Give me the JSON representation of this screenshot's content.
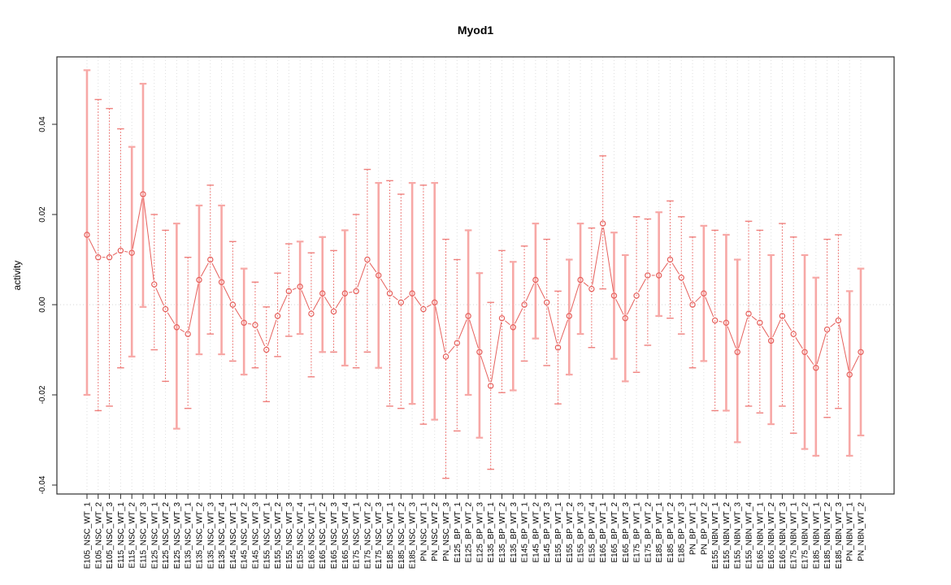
{
  "title": "Myod1",
  "colors": {
    "point": "#e6605c",
    "line": "#e6605c",
    "bar_dotted": "#ed5f5c",
    "bar_pale": "#f7a8a6",
    "cap_dotted": "#ef807d",
    "cap_pale": "#f7a8a6",
    "gridline": "#dedede",
    "zero_line": "#d4d4d4",
    "frame": "#2e2e2e",
    "tick": "#2e2e2e",
    "text": "#000000"
  },
  "chart_data": {
    "type": "scatter",
    "title": "Myod1",
    "xlabel": "",
    "ylabel": "activity",
    "ylim": [
      -0.0425,
      0.0545
    ],
    "grid": "vertical-dotted-per-category",
    "legend": "none",
    "zero_line": true,
    "yticks": [
      {
        "value": -0.04,
        "label": "-0.04"
      },
      {
        "value": -0.02,
        "label": "-0.02"
      },
      {
        "value": 0.0,
        "label": "0.00"
      },
      {
        "value": 0.02,
        "label": "0.02"
      },
      {
        "value": 0.04,
        "label": "0.04"
      }
    ],
    "points": [
      {
        "label": "E105_NSC_WT_1",
        "value": 0.0155,
        "lo": -0.02,
        "hi": 0.052,
        "style": "pale"
      },
      {
        "label": "E105_NSC_WT_2",
        "value": 0.0105,
        "lo": -0.0235,
        "hi": 0.0455,
        "style": "dotted"
      },
      {
        "label": "E105_NSC_WT_3",
        "value": 0.0105,
        "lo": -0.0225,
        "hi": 0.0435,
        "style": "dotted"
      },
      {
        "label": "E115_NSC_WT_1",
        "value": 0.012,
        "lo": -0.014,
        "hi": 0.039,
        "style": "dotted"
      },
      {
        "label": "E115_NSC_WT_2",
        "value": 0.0115,
        "lo": -0.0115,
        "hi": 0.035,
        "style": "pale"
      },
      {
        "label": "E115_NSC_WT_3",
        "value": 0.0245,
        "lo": -0.0005,
        "hi": 0.049,
        "style": "pale"
      },
      {
        "label": "E125_NSC_WT_1",
        "value": 0.0045,
        "lo": -0.01,
        "hi": 0.02,
        "style": "dotted"
      },
      {
        "label": "E125_NSC_WT_2",
        "value": -0.001,
        "lo": -0.017,
        "hi": 0.0165,
        "style": "dotted"
      },
      {
        "label": "E125_NSC_WT_3",
        "value": -0.005,
        "lo": -0.0275,
        "hi": 0.018,
        "style": "pale"
      },
      {
        "label": "E135_NSC_WT_1",
        "value": -0.0065,
        "lo": -0.023,
        "hi": 0.0105,
        "style": "dotted"
      },
      {
        "label": "E135_NSC_WT_2",
        "value": 0.0055,
        "lo": -0.011,
        "hi": 0.022,
        "style": "pale"
      },
      {
        "label": "E135_NSC_WT_3",
        "value": 0.01,
        "lo": -0.0065,
        "hi": 0.0265,
        "style": "dotted"
      },
      {
        "label": "E135_NSC_WT_4",
        "value": 0.005,
        "lo": -0.011,
        "hi": 0.022,
        "style": "pale"
      },
      {
        "label": "E145_NSC_WT_1",
        "value": 0.0,
        "lo": -0.0125,
        "hi": 0.014,
        "style": "dotted"
      },
      {
        "label": "E145_NSC_WT_2",
        "value": -0.004,
        "lo": -0.0155,
        "hi": 0.008,
        "style": "pale"
      },
      {
        "label": "E145_NSC_WT_3",
        "value": -0.0045,
        "lo": -0.014,
        "hi": 0.005,
        "style": "dotted"
      },
      {
        "label": "E155_NSC_WT_1",
        "value": -0.01,
        "lo": -0.0215,
        "hi": -0.0005,
        "style": "dotted"
      },
      {
        "label": "E155_NSC_WT_2",
        "value": -0.0025,
        "lo": -0.0115,
        "hi": 0.007,
        "style": "dotted"
      },
      {
        "label": "E155_NSC_WT_3",
        "value": 0.003,
        "lo": -0.007,
        "hi": 0.0135,
        "style": "dotted"
      },
      {
        "label": "E155_NSC_WT_4",
        "value": 0.004,
        "lo": -0.0065,
        "hi": 0.014,
        "style": "pale"
      },
      {
        "label": "E165_NSC_WT_1",
        "value": -0.002,
        "lo": -0.016,
        "hi": 0.0115,
        "style": "dotted"
      },
      {
        "label": "E165_NSC_WT_2",
        "value": 0.0025,
        "lo": -0.0105,
        "hi": 0.015,
        "style": "pale"
      },
      {
        "label": "E165_NSC_WT_3",
        "value": -0.0015,
        "lo": -0.0105,
        "hi": 0.012,
        "style": "dotted"
      },
      {
        "label": "E165_NSC_WT_4",
        "value": 0.0025,
        "lo": -0.0135,
        "hi": 0.0165,
        "style": "pale"
      },
      {
        "label": "E175_NSC_WT_1",
        "value": 0.003,
        "lo": -0.014,
        "hi": 0.02,
        "style": "dotted"
      },
      {
        "label": "E175_NSC_WT_2",
        "value": 0.01,
        "lo": -0.0105,
        "hi": 0.03,
        "style": "dotted"
      },
      {
        "label": "E175_NSC_WT_3",
        "value": 0.0065,
        "lo": -0.014,
        "hi": 0.027,
        "style": "pale"
      },
      {
        "label": "E185_NSC_WT_1",
        "value": 0.0025,
        "lo": -0.0225,
        "hi": 0.0275,
        "style": "dotted"
      },
      {
        "label": "E185_NSC_WT_2",
        "value": 0.0005,
        "lo": -0.023,
        "hi": 0.0245,
        "style": "dotted"
      },
      {
        "label": "E185_NSC_WT_3",
        "value": 0.0025,
        "lo": -0.022,
        "hi": 0.027,
        "style": "pale"
      },
      {
        "label": "PN_NSC_WT_1",
        "value": -0.001,
        "lo": -0.0265,
        "hi": 0.0265,
        "style": "dotted"
      },
      {
        "label": "PN_NSC_WT_2",
        "value": 0.0005,
        "lo": -0.0255,
        "hi": 0.027,
        "style": "pale"
      },
      {
        "label": "PN_NSC_WT_3",
        "value": -0.0115,
        "lo": -0.0385,
        "hi": 0.0145,
        "style": "dotted"
      },
      {
        "label": "E125_BP_WT_1",
        "value": -0.0085,
        "lo": -0.028,
        "hi": 0.01,
        "style": "dotted"
      },
      {
        "label": "E125_BP_WT_2",
        "value": -0.0025,
        "lo": -0.02,
        "hi": 0.0165,
        "style": "pale"
      },
      {
        "label": "E125_BP_WT_3",
        "value": -0.0105,
        "lo": -0.0295,
        "hi": 0.007,
        "style": "pale"
      },
      {
        "label": "E135_BP_WT_1",
        "value": -0.018,
        "lo": -0.0365,
        "hi": 0.0005,
        "style": "dotted"
      },
      {
        "label": "E135_BP_WT_2",
        "value": -0.003,
        "lo": -0.0195,
        "hi": 0.012,
        "style": "dotted"
      },
      {
        "label": "E135_BP_WT_3",
        "value": -0.005,
        "lo": -0.019,
        "hi": 0.0095,
        "style": "pale"
      },
      {
        "label": "E145_BP_WT_1",
        "value": 0.0,
        "lo": -0.0125,
        "hi": 0.013,
        "style": "dotted"
      },
      {
        "label": "E145_BP_WT_2",
        "value": 0.0055,
        "lo": -0.0075,
        "hi": 0.018,
        "style": "pale"
      },
      {
        "label": "E145_BP_WT_3",
        "value": 0.0005,
        "lo": -0.0135,
        "hi": 0.0145,
        "style": "dotted"
      },
      {
        "label": "E155_BP_WT_1",
        "value": -0.0095,
        "lo": -0.022,
        "hi": 0.003,
        "style": "dotted"
      },
      {
        "label": "E155_BP_WT_2",
        "value": -0.0025,
        "lo": -0.0155,
        "hi": 0.01,
        "style": "pale"
      },
      {
        "label": "E155_BP_WT_3",
        "value": 0.0055,
        "lo": -0.0065,
        "hi": 0.018,
        "style": "pale"
      },
      {
        "label": "E155_BP_WT_4",
        "value": 0.0035,
        "lo": -0.0095,
        "hi": 0.017,
        "style": "dotted"
      },
      {
        "label": "E165_BP_WT_1",
        "value": 0.018,
        "lo": 0.0035,
        "hi": 0.033,
        "style": "dotted"
      },
      {
        "label": "E165_BP_WT_2",
        "value": 0.002,
        "lo": -0.012,
        "hi": 0.016,
        "style": "pale"
      },
      {
        "label": "E165_BP_WT_3",
        "value": -0.003,
        "lo": -0.017,
        "hi": 0.011,
        "style": "pale"
      },
      {
        "label": "E175_BP_WT_1",
        "value": 0.002,
        "lo": -0.015,
        "hi": 0.0195,
        "style": "dotted"
      },
      {
        "label": "E175_BP_WT_2",
        "value": 0.0065,
        "lo": -0.009,
        "hi": 0.019,
        "style": "dotted"
      },
      {
        "label": "E185_BP_WT_1",
        "value": 0.0065,
        "lo": -0.0025,
        "hi": 0.0205,
        "style": "pale"
      },
      {
        "label": "E185_BP_WT_2",
        "value": 0.01,
        "lo": -0.003,
        "hi": 0.023,
        "style": "dotted"
      },
      {
        "label": "E185_BP_WT_3",
        "value": 0.006,
        "lo": -0.0065,
        "hi": 0.0195,
        "style": "dotted"
      },
      {
        "label": "PN_BP_WT_1",
        "value": 0.0,
        "lo": -0.014,
        "hi": 0.015,
        "style": "dotted"
      },
      {
        "label": "PN_BP_WT_2",
        "value": 0.0025,
        "lo": -0.0125,
        "hi": 0.0175,
        "style": "pale"
      },
      {
        "label": "E155_NBN_WT_1",
        "value": -0.0035,
        "lo": -0.0235,
        "hi": 0.0165,
        "style": "dotted"
      },
      {
        "label": "E155_NBN_WT_2",
        "value": -0.004,
        "lo": -0.0235,
        "hi": 0.0155,
        "style": "pale"
      },
      {
        "label": "E155_NBN_WT_3",
        "value": -0.0105,
        "lo": -0.0305,
        "hi": 0.01,
        "style": "pale"
      },
      {
        "label": "E155_NBN_WT_4",
        "value": -0.002,
        "lo": -0.0225,
        "hi": 0.0185,
        "style": "dotted"
      },
      {
        "label": "E165_NBN_WT_1",
        "value": -0.004,
        "lo": -0.024,
        "hi": 0.0165,
        "style": "dotted"
      },
      {
        "label": "E165_NBN_WT_2",
        "value": -0.008,
        "lo": -0.0265,
        "hi": 0.011,
        "style": "pale"
      },
      {
        "label": "E165_NBN_WT_3",
        "value": -0.0025,
        "lo": -0.0225,
        "hi": 0.018,
        "style": "dotted"
      },
      {
        "label": "E175_NBN_WT_1",
        "value": -0.0065,
        "lo": -0.0285,
        "hi": 0.015,
        "style": "dotted"
      },
      {
        "label": "E175_NBN_WT_2",
        "value": -0.0105,
        "lo": -0.032,
        "hi": 0.011,
        "style": "pale"
      },
      {
        "label": "E185_NBN_WT_1",
        "value": -0.014,
        "lo": -0.0335,
        "hi": 0.006,
        "style": "pale"
      },
      {
        "label": "E185_NBN_WT_2",
        "value": -0.0055,
        "lo": -0.025,
        "hi": 0.0145,
        "style": "dotted"
      },
      {
        "label": "E185_NBN_WT_3",
        "value": -0.0035,
        "lo": -0.023,
        "hi": 0.0155,
        "style": "dotted"
      },
      {
        "label": "PN_NBN_WT_1",
        "value": -0.0155,
        "lo": -0.0335,
        "hi": 0.003,
        "style": "pale"
      },
      {
        "label": "PN_NBN_WT_2",
        "value": -0.0105,
        "lo": -0.029,
        "hi": 0.008,
        "style": "pale"
      }
    ]
  }
}
